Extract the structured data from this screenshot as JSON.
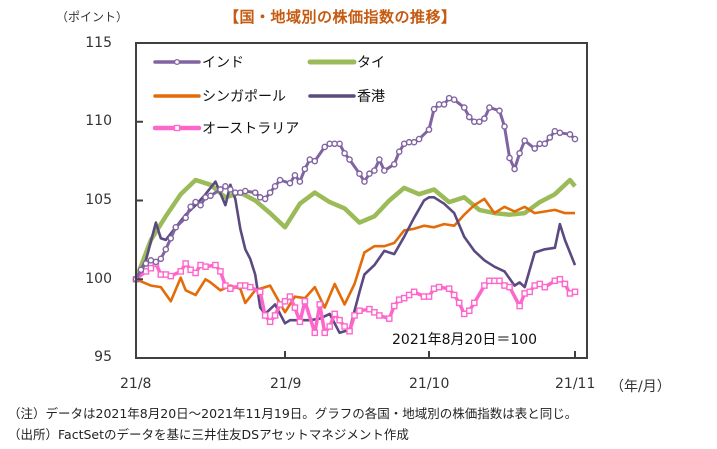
{
  "title": "【国・地域別の株価指数の推移】",
  "yunit": "（ポイント）",
  "xunit": "（年/月）",
  "base_note": "2021年8月20日＝100",
  "notes": [
    "（注）データは2021年8月20日～2021年11月19日。グラフの各国・地域別の株価指数は表と同じ。",
    "（出所）FactSetのデータを基に三井住友DSアセットマネジメント作成"
  ],
  "chart_data": {
    "type": "line",
    "title": "【国・地域別の株価指数の推移】",
    "xlabel": "（年/月）",
    "ylabel": "（ポイント）",
    "ylim": [
      95,
      115
    ],
    "yticks": [
      95,
      100,
      105,
      110,
      115
    ],
    "xticks": [
      {
        "label": "21/8",
        "day": 0
      },
      {
        "label": "21/9",
        "day": 30
      },
      {
        "label": "21/10",
        "day": 59
      },
      {
        "label": "21/11",
        "day": 88
      }
    ],
    "xrange_days": [
      0,
      91
    ],
    "grid": false,
    "legend_position": "top-left",
    "annotation": "2021年8月20日＝100",
    "series": [
      {
        "name": "インド",
        "color": "#8064a2",
        "marker": "circle",
        "x": [
          0,
          1,
          2,
          3,
          4,
          5,
          6,
          7,
          8,
          10,
          11,
          12,
          13,
          14,
          15,
          17,
          18,
          19,
          20,
          21,
          22,
          24,
          25,
          26,
          27,
          28,
          29,
          31,
          32,
          33,
          34,
          35,
          36,
          38,
          39,
          40,
          41,
          42,
          43,
          45,
          46,
          47,
          48,
          49,
          50,
          52,
          53,
          54,
          55,
          56,
          57,
          59,
          60,
          61,
          62,
          63,
          64,
          66,
          67,
          68,
          69,
          70,
          71,
          73,
          74,
          75,
          76,
          77,
          78,
          80,
          81,
          82,
          83,
          84,
          85,
          87,
          88
        ],
        "values": [
          100.0,
          100.6,
          101.0,
          101.2,
          101.1,
          101.3,
          101.9,
          102.6,
          103.3,
          103.9,
          104.6,
          104.9,
          104.7,
          105.2,
          105.3,
          105.7,
          105.9,
          105.7,
          105.5,
          105.5,
          105.6,
          105.5,
          105.2,
          105.1,
          105.5,
          105.9,
          106.3,
          106.1,
          106.6,
          106.2,
          107.0,
          107.6,
          107.5,
          108.4,
          108.6,
          108.6,
          108.6,
          108.0,
          107.6,
          106.7,
          106.2,
          106.7,
          106.9,
          107.6,
          106.9,
          107.3,
          108.1,
          108.6,
          108.7,
          108.7,
          108.9,
          109.5,
          110.8,
          111.1,
          111.1,
          111.5,
          111.4,
          110.9,
          110.3,
          110.0,
          110.0,
          110.2,
          110.9,
          110.7,
          109.7,
          107.7,
          107.0,
          108.0,
          108.8,
          108.3,
          108.6,
          108.6,
          109.0,
          109.4,
          109.3,
          109.2,
          108.9
        ]
      },
      {
        "name": "タイ",
        "color": "#9bbb59",
        "marker": "none",
        "x": [
          0,
          3,
          6,
          9,
          12,
          15,
          18,
          21,
          24,
          27,
          30,
          33,
          36,
          39,
          42,
          45,
          48,
          51,
          54,
          57,
          60,
          63,
          66,
          69,
          72,
          75,
          78,
          81,
          84,
          86,
          87,
          88
        ],
        "values": [
          100.0,
          102.5,
          104.0,
          105.4,
          106.3,
          106.0,
          105.2,
          105.5,
          105.0,
          104.2,
          103.3,
          104.8,
          105.5,
          104.9,
          104.5,
          103.6,
          104.0,
          105.0,
          105.8,
          105.4,
          105.7,
          104.9,
          105.2,
          104.4,
          104.2,
          104.1,
          104.2,
          104.9,
          105.4,
          106.0,
          106.3,
          105.9
        ]
      },
      {
        "name": "シンガポール",
        "color": "#e36c09",
        "marker": "none",
        "x": [
          0,
          3,
          5,
          7,
          9,
          10,
          12,
          14,
          15,
          17,
          19,
          21,
          22,
          24,
          27,
          30,
          32,
          34,
          36,
          38,
          40,
          42,
          44,
          46,
          48,
          50,
          52,
          54,
          56,
          58,
          60,
          62,
          64,
          66,
          68,
          70,
          72,
          74,
          76,
          78,
          80,
          82,
          84,
          86,
          88
        ],
        "values": [
          100.0,
          99.6,
          99.5,
          98.6,
          100.1,
          99.3,
          99.0,
          100.0,
          99.8,
          99.3,
          99.6,
          99.4,
          98.5,
          99.3,
          99.6,
          97.9,
          98.9,
          98.8,
          99.5,
          98.2,
          99.7,
          98.4,
          99.7,
          101.7,
          102.1,
          102.1,
          102.3,
          103.1,
          103.2,
          103.4,
          103.3,
          103.5,
          103.4,
          104.1,
          104.7,
          105.1,
          104.2,
          104.6,
          104.3,
          104.6,
          104.2,
          104.3,
          104.4,
          104.2,
          104.2
        ]
      },
      {
        "name": "香港",
        "color": "#5b4a82",
        "marker": "none",
        "x": [
          0,
          2,
          4,
          5,
          6,
          8,
          10,
          12,
          14,
          16,
          18,
          19,
          20,
          21,
          22,
          23,
          24,
          25,
          26,
          28,
          30,
          31,
          33,
          35,
          37,
          39,
          41,
          43,
          45,
          46,
          48,
          50,
          52,
          54,
          56,
          58,
          59,
          60,
          62,
          64,
          66,
          68,
          70,
          72,
          74,
          76,
          77,
          78,
          80,
          82,
          84,
          85,
          86,
          88
        ],
        "values": [
          100.0,
          101.2,
          103.6,
          102.6,
          102.5,
          103.3,
          104.1,
          104.7,
          105.4,
          106.2,
          104.7,
          106.0,
          105.1,
          103.2,
          101.9,
          101.3,
          100.3,
          98.2,
          97.8,
          98.4,
          97.2,
          97.4,
          97.4,
          97.4,
          97.5,
          97.8,
          96.6,
          96.8,
          99.2,
          100.3,
          100.9,
          101.8,
          101.6,
          102.7,
          103.9,
          105.0,
          105.2,
          105.2,
          104.8,
          104.2,
          102.7,
          101.8,
          101.2,
          100.8,
          100.5,
          99.6,
          99.8,
          99.5,
          101.7,
          101.9,
          102.0,
          103.5,
          102.5,
          100.9
        ]
      },
      {
        "name": "オーストラリア",
        "color": "#ff66cc",
        "marker": "square",
        "x": [
          0,
          2,
          3,
          4,
          5,
          6,
          7,
          9,
          10,
          11,
          12,
          13,
          14,
          16,
          17,
          18,
          19,
          21,
          22,
          23,
          25,
          26,
          27,
          28,
          29,
          30,
          31,
          32,
          33,
          34,
          36,
          37,
          38,
          39,
          40,
          41,
          42,
          43,
          44,
          45,
          47,
          48,
          49,
          51,
          52,
          53,
          54,
          55,
          56,
          58,
          59,
          60,
          61,
          63,
          64,
          65,
          66,
          67,
          68,
          70,
          71,
          72,
          73,
          74,
          75,
          77,
          78,
          79,
          80,
          81,
          82,
          84,
          85,
          86,
          87,
          88
        ],
        "values": [
          100.0,
          100.5,
          100.7,
          101.0,
          100.3,
          100.3,
          100.2,
          100.5,
          101.0,
          100.6,
          100.4,
          100.9,
          100.8,
          100.9,
          100.5,
          99.6,
          99.4,
          99.6,
          99.6,
          99.5,
          99.2,
          97.7,
          97.3,
          97.7,
          98.4,
          98.6,
          98.9,
          98.2,
          97.3,
          98.6,
          96.6,
          98.4,
          96.6,
          97.0,
          97.8,
          97.4,
          97.0,
          96.7,
          97.7,
          98.0,
          98.1,
          97.9,
          97.7,
          97.5,
          98.3,
          98.7,
          98.8,
          99.0,
          99.2,
          98.9,
          98.9,
          99.4,
          99.5,
          99.4,
          99.0,
          98.5,
          97.8,
          98.0,
          98.5,
          99.6,
          99.9,
          99.9,
          99.9,
          99.6,
          99.5,
          98.3,
          99.1,
          99.2,
          99.6,
          99.7,
          99.5,
          99.9,
          100.0,
          99.7,
          99.1,
          99.2
        ]
      }
    ]
  }
}
